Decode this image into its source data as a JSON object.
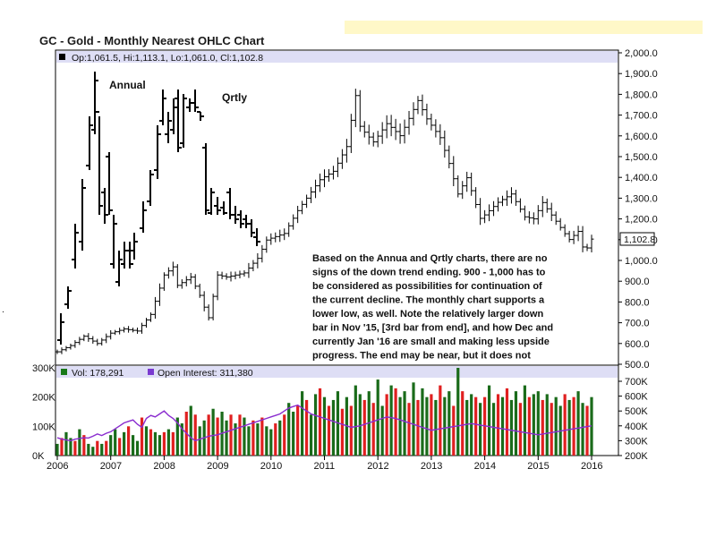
{
  "chart_title": "GC - Gold - Monthly Nearest OHLC Chart",
  "colors": {
    "header_band": "#fff8c8",
    "panel_header": "#dedef5",
    "up_volume": "#1a6b1a",
    "down_volume": "#e02020",
    "open_interest_line": "#8a2ccf",
    "legend_box_black": "#000000",
    "legend_box_green": "#1a7a1a",
    "legend_box_purple": "#7a3ad0"
  },
  "price_legend": "Op:1,061.5, Hi:1,113.1, Lo:1,061.0, Cl:1,102.8",
  "volume_legend": {
    "vol_label": "Vol: 178,291",
    "oi_label": "Open Interest: 311,380"
  },
  "last_price_badge": "1,102.8",
  "overlay_labels": {
    "annual": "Annual",
    "quarterly": "Qrtly"
  },
  "note_lines": [
    "Based on the Annua and Qrtly charts, there are no",
    "signs of the down trend ending.  900 - 1,000 has to",
    "be considered as possibilities for continuation of",
    "the current decline.  The monthly chart supports a",
    "lower low, as well.  Note the relatively larger down",
    "bar in Nov '15, [3rd bar from end], and how Dec and",
    "currently Jan '16 are small and making less upside",
    "progress.  The end may be near, but it does not",
    "seem to be soon."
  ],
  "chart_data": [
    {
      "type": "ohlc",
      "title": "GC - Gold - Monthly Nearest OHLC Chart",
      "y_tick_labels": [
        "500.0",
        "600.0",
        "700.0",
        "800.0",
        "900.0",
        "1,000.0",
        "1,100.0",
        "1,200.0",
        "1,300.0",
        "1,400.0",
        "1,500.0",
        "1,600.0",
        "1,700.0",
        "1,800.0",
        "1,900.0",
        "2,000.0"
      ],
      "y_ticks": [
        500,
        600,
        700,
        800,
        900,
        1000,
        1100,
        1200,
        1300,
        1400,
        1500,
        1600,
        1700,
        1800,
        1900,
        2000
      ],
      "ylim": [
        500,
        2000
      ],
      "x_tick_labels": [
        "2006",
        "2007",
        "2008",
        "2009",
        "2010",
        "2011",
        "2012",
        "2013",
        "2014",
        "2015",
        "2016"
      ],
      "xlim": [
        2006.0,
        2016.25
      ],
      "monthly_close": [
        [
          2006.0,
          560
        ],
        [
          2006.25,
          590
        ],
        [
          2006.5,
          635
        ],
        [
          2006.75,
          600
        ],
        [
          2007.0,
          650
        ],
        [
          2007.25,
          670
        ],
        [
          2007.5,
          660
        ],
        [
          2007.75,
          740
        ],
        [
          2008.0,
          930
        ],
        [
          2008.17,
          970
        ],
        [
          2008.25,
          880
        ],
        [
          2008.5,
          920
        ],
        [
          2008.67,
          830
        ],
        [
          2008.83,
          720
        ],
        [
          2009.0,
          930
        ],
        [
          2009.17,
          920
        ],
        [
          2009.5,
          940
        ],
        [
          2009.75,
          1010
        ],
        [
          2009.92,
          1100
        ],
        [
          2010.25,
          1130
        ],
        [
          2010.5,
          1240
        ],
        [
          2010.75,
          1330
        ],
        [
          2010.92,
          1390
        ],
        [
          2011.17,
          1430
        ],
        [
          2011.42,
          1550
        ],
        [
          2011.58,
          1800
        ],
        [
          2011.67,
          1640
        ],
        [
          2011.92,
          1570
        ],
        [
          2012.17,
          1660
        ],
        [
          2012.42,
          1600
        ],
        [
          2012.75,
          1770
        ],
        [
          2012.92,
          1680
        ],
        [
          2013.17,
          1590
        ],
        [
          2013.33,
          1470
        ],
        [
          2013.5,
          1320
        ],
        [
          2013.67,
          1400
        ],
        [
          2013.92,
          1200
        ],
        [
          2014.25,
          1280
        ],
        [
          2014.5,
          1320
        ],
        [
          2014.75,
          1210
        ],
        [
          2014.92,
          1200
        ],
        [
          2015.08,
          1280
        ],
        [
          2015.33,
          1190
        ],
        [
          2015.58,
          1100
        ],
        [
          2015.75,
          1140
        ],
        [
          2015.83,
          1065
        ],
        [
          2015.92,
          1060
        ],
        [
          2016.0,
          1102.8
        ]
      ],
      "annotation": "1,102.8",
      "series": [
        {
          "name": "Annual",
          "overlay": true
        },
        {
          "name": "Qrtly",
          "overlay": true
        }
      ]
    },
    {
      "type": "bar",
      "title": "",
      "legend": [
        "Vol: 178,291",
        "Open Interest: 311,380"
      ],
      "left_axis_ticks": [
        0,
        100000,
        200000,
        300000
      ],
      "left_axis_labels": [
        "0K",
        "100K",
        "200K",
        "300K"
      ],
      "right_axis_ticks": [
        200000,
        300000,
        400000,
        500000,
        600000,
        700000
      ],
      "right_axis_labels": [
        "200K",
        "300K",
        "400K",
        "500K",
        "600K",
        "700K"
      ],
      "volume_k": [
        40,
        60,
        80,
        60,
        50,
        90,
        70,
        40,
        30,
        50,
        40,
        50,
        70,
        90,
        60,
        80,
        100,
        70,
        50,
        130,
        100,
        90,
        80,
        70,
        80,
        90,
        80,
        130,
        110,
        150,
        170,
        140,
        100,
        120,
        140,
        160,
        130,
        150,
        120,
        140,
        110,
        140,
        130,
        100,
        120,
        110,
        130,
        100,
        90,
        110,
        120,
        140,
        180,
        150,
        170,
        220,
        190,
        140,
        210,
        230,
        200,
        170,
        190,
        220,
        160,
        200,
        170,
        240,
        210,
        190,
        220,
        180,
        260,
        170,
        210,
        240,
        230,
        200,
        220,
        180,
        250,
        190,
        230,
        200,
        210,
        190,
        240,
        200,
        220,
        170,
        300,
        220,
        190,
        210,
        200,
        180,
        200,
        240,
        180,
        210,
        200,
        230,
        190,
        220,
        180,
        240,
        200,
        210,
        220,
        190,
        210,
        180,
        200,
        170,
        210,
        190,
        200,
        220,
        180,
        170,
        200,
        160,
        210,
        180,
        190,
        200,
        180,
        170,
        190,
        160,
        200,
        180,
        170,
        190,
        160,
        200,
        180,
        170,
        160,
        150,
        200,
        170,
        190,
        180,
        190,
        170,
        180,
        160,
        200,
        230,
        170,
        210,
        190,
        220,
        240,
        180,
        170,
        190,
        160,
        200,
        180,
        210,
        200,
        190,
        180,
        200,
        210,
        180
      ],
      "down_month_pattern": "alternating red (down) and green (up) months",
      "open_interest_k": [
        320,
        310,
        305,
        300,
        310,
        315,
        320,
        318,
        330,
        345,
        335,
        350,
        360,
        380,
        400,
        420,
        430,
        440,
        410,
        390,
        450,
        470,
        460,
        480,
        500,
        470,
        450,
        420,
        380,
        350,
        320,
        300,
        310,
        320,
        330,
        335,
        340,
        350,
        360,
        370,
        380,
        390,
        400,
        410,
        420,
        430,
        440,
        450,
        460,
        470,
        480,
        500,
        520,
        530,
        540,
        520,
        500,
        480,
        470,
        460,
        450,
        440,
        430,
        420,
        410,
        400,
        390,
        395,
        400,
        410,
        420,
        430,
        440,
        450,
        460,
        455,
        450,
        440,
        430,
        420,
        410,
        400,
        390,
        380,
        370,
        375,
        380,
        385,
        390,
        395,
        400,
        405,
        410,
        415,
        410,
        405,
        400,
        395,
        390,
        385,
        380,
        375,
        370,
        365,
        360,
        355,
        350,
        345,
        340,
        345,
        350,
        355,
        360,
        365,
        370,
        375,
        380,
        385,
        390,
        395,
        400,
        405,
        410,
        415,
        420,
        425,
        430,
        435,
        440,
        445,
        450,
        455,
        460,
        455,
        450,
        445,
        440,
        435,
        430,
        425,
        420,
        415,
        410,
        405,
        400,
        395,
        390,
        385,
        380,
        375,
        370,
        365,
        360,
        355,
        350,
        345,
        340,
        335,
        330,
        325,
        320,
        315,
        312,
        311,
        311,
        311,
        311,
        311
      ]
    }
  ]
}
